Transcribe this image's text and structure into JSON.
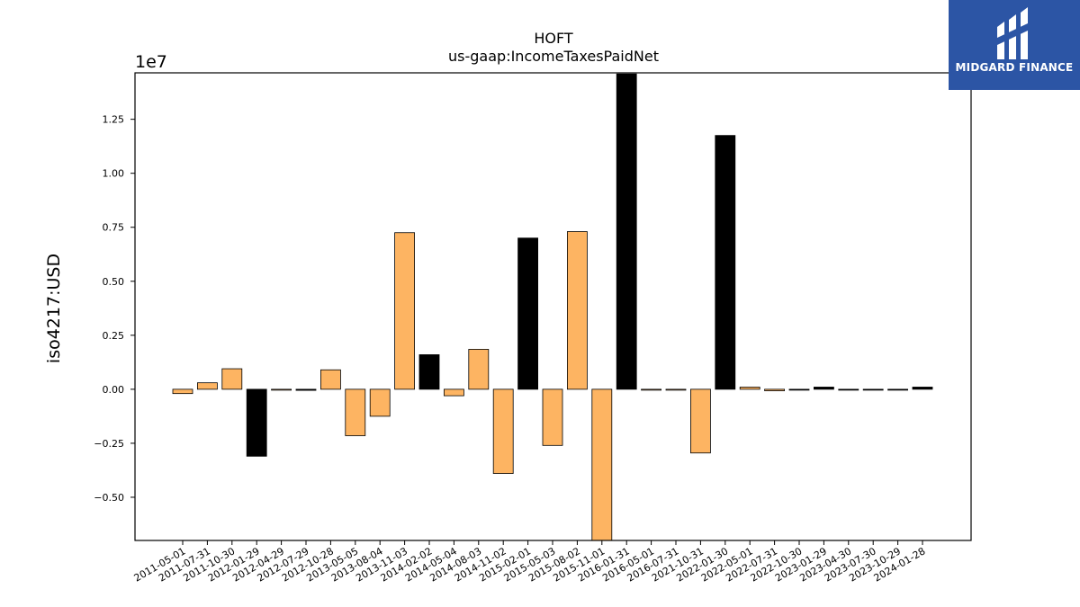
{
  "chart_data": {
    "type": "bar",
    "title": "HOFT",
    "subtitle": "us-gaap:IncomeTaxesPaidNet",
    "ylabel": "iso4217:USD",
    "xlabel": "",
    "offset_label": "1e7",
    "ylim": [
      -0.7,
      1.465
    ],
    "y_scale": 10000000,
    "yticks": [
      -0.5,
      -0.25,
      0.0,
      0.25,
      0.5,
      0.75,
      1.0,
      1.25
    ],
    "ytick_labels": [
      "−0.50",
      "−0.25",
      "0.00",
      "0.25",
      "0.50",
      "0.75",
      "1.00",
      "1.25"
    ],
    "grid": false,
    "colors": {
      "highlight": "#000000",
      "normal": "#fdb462",
      "edge": "#000000"
    },
    "categories": [
      "2011-05-01",
      "2011-07-31",
      "2011-10-30",
      "2012-01-29",
      "2012-04-29",
      "2012-07-29",
      "2012-10-28",
      "2013-05-05",
      "2013-08-04",
      "2013-11-03",
      "2014-02-02",
      "2014-05-04",
      "2014-08-03",
      "2014-11-02",
      "2015-02-01",
      "2015-05-03",
      "2015-08-02",
      "2015-11-01",
      "2016-01-31",
      "2016-05-01",
      "2016-07-31",
      "2021-10-31",
      "2022-01-30",
      "2022-05-01",
      "2022-07-31",
      "2022-10-30",
      "2023-01-29",
      "2023-04-30",
      "2023-07-30",
      "2023-10-29",
      "2024-01-28"
    ],
    "values": [
      -0.02,
      0.03,
      0.095,
      -0.31,
      0.0,
      -0.005,
      0.09,
      -0.215,
      -0.125,
      0.725,
      0.16,
      -0.03,
      0.185,
      -0.39,
      0.7,
      -0.26,
      0.73,
      -0.72,
      1.46,
      0.0,
      0.0,
      -0.295,
      1.175,
      0.01,
      -0.007,
      -0.004,
      0.01,
      -0.004,
      -0.004,
      -0.004,
      0.01
    ],
    "highlight": [
      false,
      false,
      false,
      true,
      false,
      true,
      false,
      false,
      false,
      false,
      true,
      false,
      false,
      false,
      true,
      false,
      false,
      false,
      true,
      false,
      false,
      false,
      true,
      false,
      false,
      true,
      true,
      true,
      true,
      true,
      true
    ]
  },
  "logo": {
    "name": "MIDGARD FINANCE",
    "icon": "midgard-logo-icon"
  }
}
